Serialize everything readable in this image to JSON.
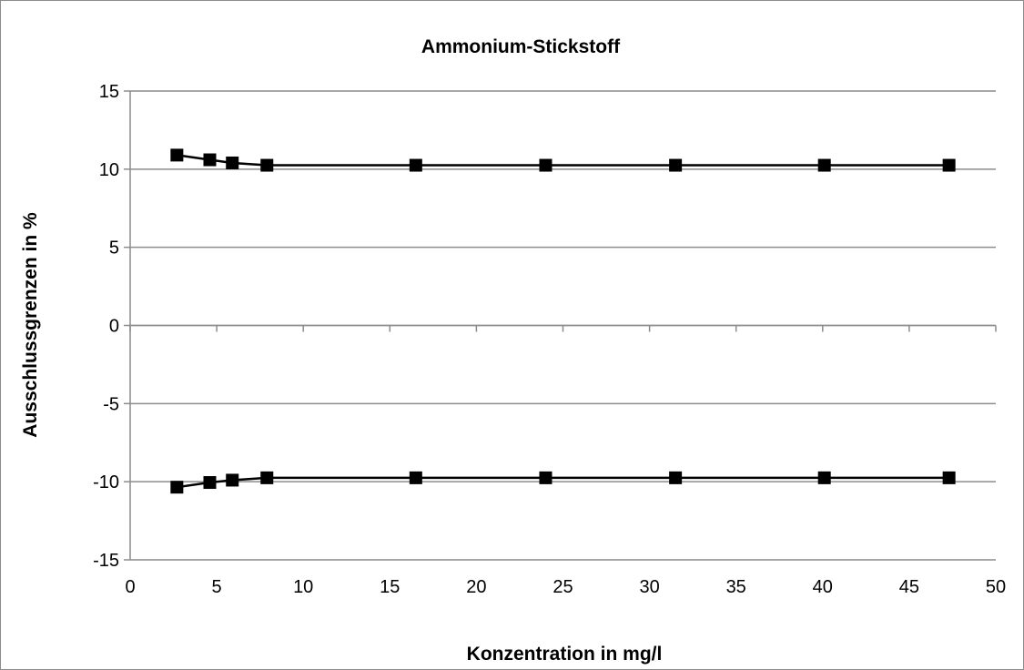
{
  "chart_data": {
    "type": "line",
    "title": "Ammonium-Stickstoff",
    "xlabel": "Konzentration in mg/l",
    "ylabel": "Ausschlussgrenzen in %",
    "xlim": [
      0,
      50
    ],
    "ylim": [
      -15,
      15
    ],
    "x_ticks": [
      0,
      5,
      10,
      15,
      20,
      25,
      30,
      35,
      40,
      45,
      50
    ],
    "y_ticks": [
      15,
      10,
      5,
      0,
      -5,
      -10,
      -15
    ],
    "x_tick_labels": [
      "0",
      "5",
      "10",
      "15",
      "20",
      "25",
      "30",
      "35",
      "40",
      "45",
      "50"
    ],
    "y_tick_labels": [
      "15",
      "10",
      "5",
      "0",
      "-5",
      "-10",
      "-15"
    ],
    "grid": "horizontal major gridlines",
    "legend": "none",
    "colors": {
      "series": "#000000",
      "grid": "#8c8c8c",
      "frame": "#8c8c8c"
    },
    "marker": "square",
    "series": [
      {
        "x": [
          2.7,
          4.6,
          5.9,
          7.9,
          16.5,
          24.0,
          31.5,
          40.1,
          47.3
        ],
        "y": [
          10.9,
          10.6,
          10.4,
          10.25,
          10.25,
          10.25,
          10.25,
          10.25,
          10.25
        ]
      },
      {
        "x": [
          2.7,
          4.6,
          5.9,
          7.9,
          16.5,
          24.0,
          31.5,
          40.1,
          47.3
        ],
        "y": [
          -10.35,
          -10.05,
          -9.9,
          -9.75,
          -9.75,
          -9.75,
          -9.75,
          -9.75,
          -9.75
        ]
      }
    ]
  }
}
